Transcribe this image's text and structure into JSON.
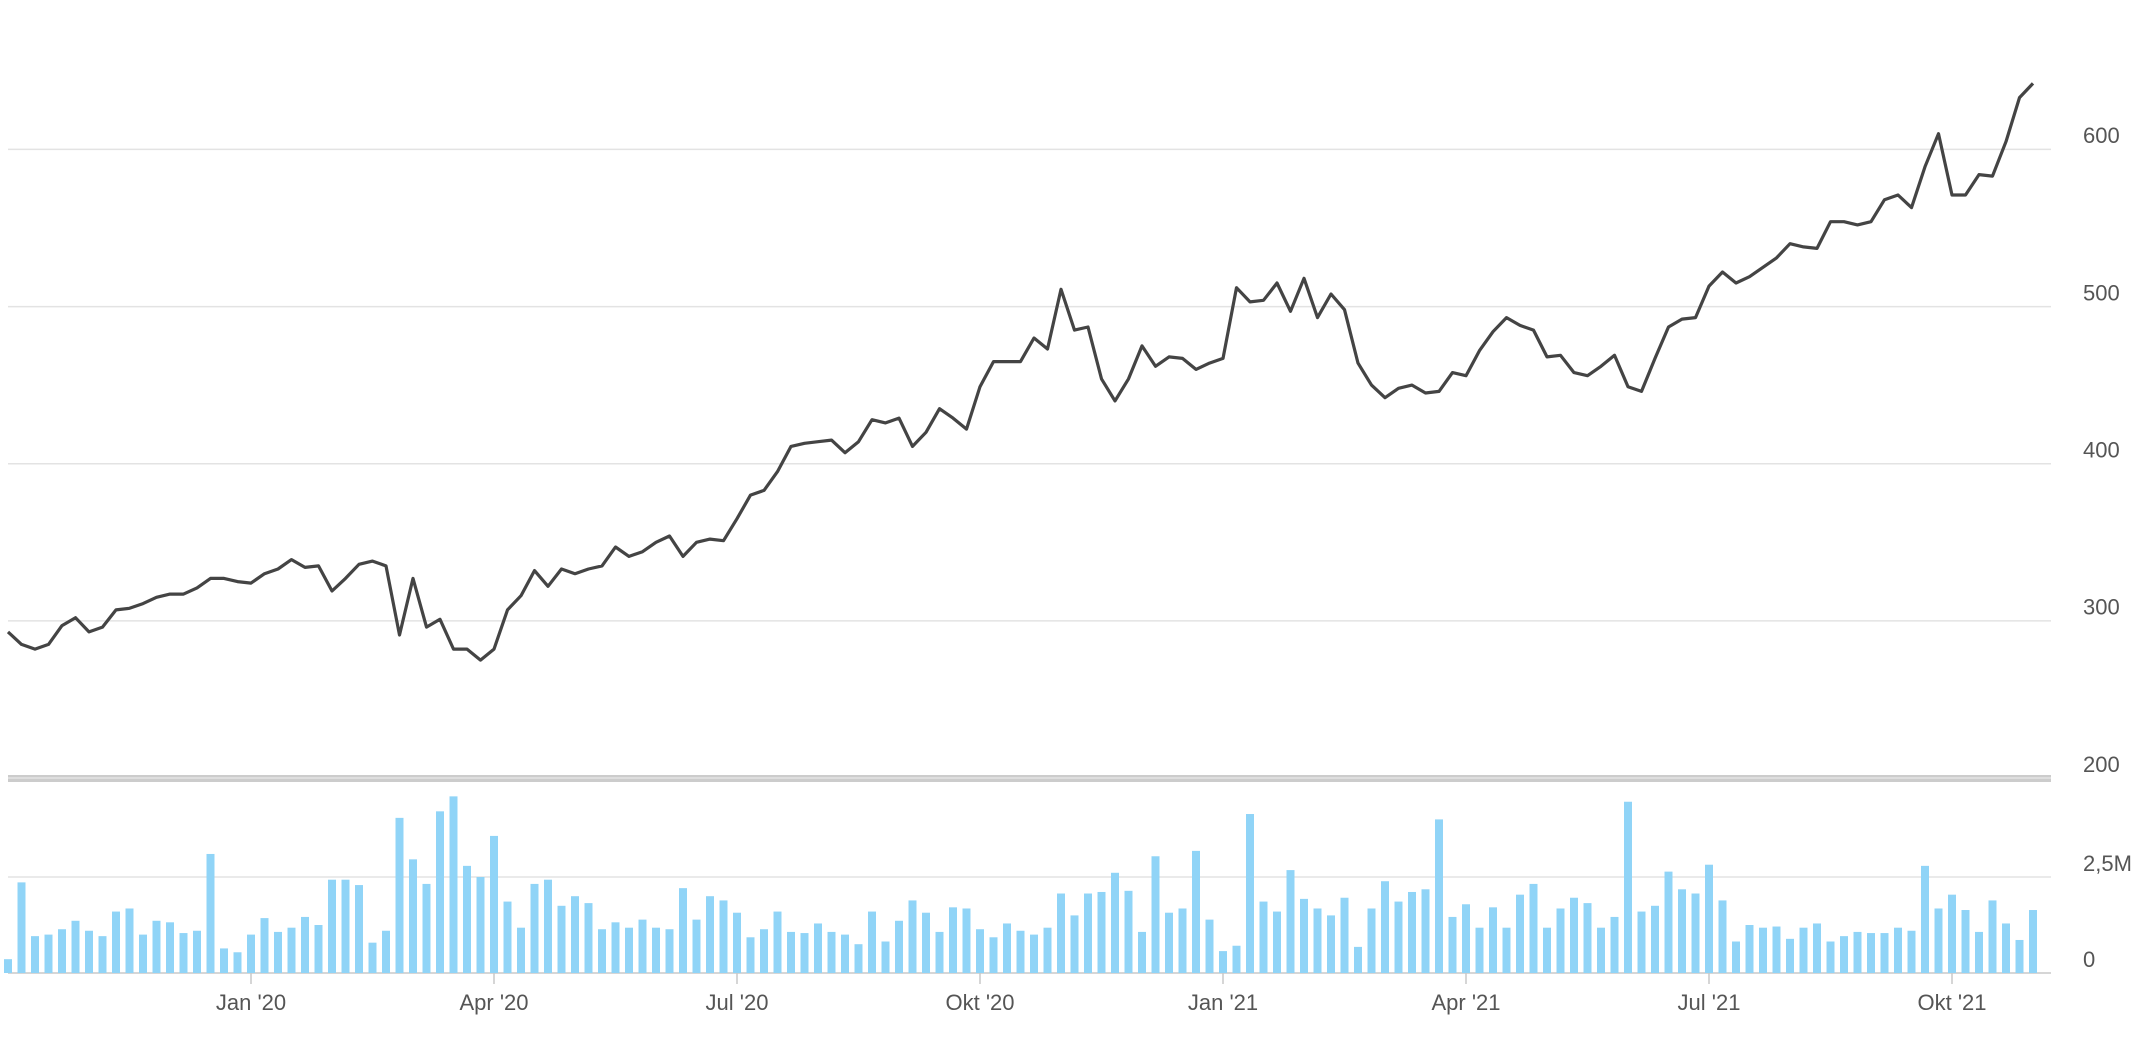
{
  "chart_data": [
    {
      "type": "line",
      "color": "#444444",
      "ylim": [
        200,
        690
      ],
      "yticks": [
        200,
        300,
        400,
        500,
        600
      ],
      "grid": true,
      "categories": [
        null,
        null,
        null,
        null,
        null,
        null,
        null,
        null,
        null,
        null,
        null,
        null,
        null,
        null,
        null,
        null,
        null,
        null,
        "Jan '20",
        null,
        null,
        null,
        null,
        null,
        null,
        null,
        null,
        null,
        null,
        null,
        null,
        null,
        null,
        null,
        null,
        null,
        "Apr '20",
        null,
        null,
        null,
        null,
        null,
        null,
        null,
        null,
        null,
        null,
        null,
        null,
        null,
        null,
        null,
        null,
        null,
        "Jul '20",
        null,
        null,
        null,
        null,
        null,
        null,
        null,
        null,
        null,
        null,
        null,
        null,
        null,
        null,
        null,
        null,
        null,
        "Okt '20",
        null,
        null,
        null,
        null,
        null,
        null,
        null,
        null,
        null,
        null,
        null,
        null,
        null,
        null,
        null,
        null,
        null,
        "Jan '21",
        null,
        null,
        null,
        null,
        null,
        null,
        null,
        null,
        null,
        null,
        null,
        null,
        null,
        null,
        null,
        null,
        null,
        "Apr '21",
        null,
        null,
        null,
        null,
        null,
        null,
        null,
        null,
        null,
        null,
        null,
        null,
        null,
        null,
        null,
        null,
        null,
        "Jul '21",
        null,
        null,
        null,
        null,
        null,
        null,
        null,
        null,
        null,
        null,
        null,
        null,
        null,
        null,
        null,
        null,
        null,
        "Okt '21",
        null,
        null,
        null,
        null,
        null,
        null
      ],
      "values": [
        293,
        285,
        282,
        285,
        297,
        302,
        293,
        296,
        307,
        308,
        311,
        315,
        317,
        317,
        321,
        327,
        327,
        325,
        324,
        330,
        333,
        339,
        334,
        335,
        319,
        327,
        336,
        338,
        335,
        291,
        327,
        296,
        301,
        282,
        282,
        275,
        282,
        307,
        316,
        332,
        322,
        333,
        330,
        333,
        335,
        347,
        341,
        344,
        350,
        354,
        341,
        350,
        352,
        351,
        365,
        380,
        383,
        395,
        411,
        413,
        414,
        415,
        407,
        414,
        428,
        426,
        429,
        411,
        420,
        435,
        429,
        422,
        449,
        465,
        465,
        465,
        480,
        473,
        511,
        485,
        487,
        454,
        440,
        454,
        475,
        462,
        468,
        467,
        460,
        464,
        467,
        512,
        503,
        504,
        515,
        497,
        518,
        493,
        508,
        498,
        464,
        450,
        442,
        448,
        450,
        445,
        446,
        458,
        456,
        472,
        484,
        493,
        488,
        485,
        468,
        469,
        458,
        456,
        462,
        469,
        449,
        446,
        467,
        487,
        492,
        493,
        513,
        522,
        515,
        519,
        525,
        531,
        540,
        538,
        537,
        554,
        554,
        552,
        554,
        568,
        571,
        563,
        589,
        610,
        571,
        571,
        584,
        583,
        605,
        633,
        642
      ]
    },
    {
      "type": "bar",
      "color": "#90d4f7",
      "ylim": [
        0,
        5000000
      ],
      "yticks": [
        0,
        {
          "value": 2500000,
          "label": "2,5M"
        }
      ],
      "grid": true,
      "values": [
        360000,
        2360000,
        960000,
        1000000,
        1140000,
        1360000,
        1100000,
        960000,
        1600000,
        1680000,
        1000000,
        1360000,
        1320000,
        1040000,
        1100000,
        3100000,
        640000,
        540000,
        1000000,
        1430000,
        1070000,
        1180000,
        1460000,
        1250000,
        2430000,
        2430000,
        2290000,
        790000,
        1100000,
        4040000,
        2960000,
        2320000,
        4210000,
        4600000,
        2790000,
        2500000,
        3570000,
        1860000,
        1180000,
        2320000,
        2430000,
        1750000,
        2000000,
        1820000,
        1140000,
        1320000,
        1180000,
        1390000,
        1180000,
        1140000,
        2210000,
        1390000,
        2000000,
        1890000,
        1570000,
        930000,
        1140000,
        1600000,
        1070000,
        1040000,
        1290000,
        1070000,
        1000000,
        750000,
        1600000,
        820000,
        1360000,
        1890000,
        1570000,
        1070000,
        1710000,
        1680000,
        1140000,
        930000,
        1290000,
        1100000,
        1000000,
        1180000,
        2070000,
        1500000,
        2070000,
        2110000,
        2610000,
        2140000,
        1070000,
        3040000,
        1570000,
        1680000,
        3180000,
        1390000,
        570000,
        710000,
        4140000,
        1860000,
        1600000,
        2680000,
        1930000,
        1680000,
        1500000,
        1960000,
        680000,
        1680000,
        2390000,
        1860000,
        2110000,
        2180000,
        4000000,
        1460000,
        1790000,
        1180000,
        1710000,
        1180000,
        2040000,
        2320000,
        1180000,
        1680000,
        1960000,
        1820000,
        1180000,
        1460000,
        4460000,
        1600000,
        1750000,
        2640000,
        2180000,
        2070000,
        2820000,
        1890000,
        820000,
        1250000,
        1180000,
        1210000,
        890000,
        1180000,
        1290000,
        820000,
        960000,
        1070000,
        1040000,
        1040000,
        1180000,
        1100000,
        2790000,
        1680000,
        2040000,
        1640000,
        1070000,
        1890000,
        1290000,
        860000,
        1640000
      ]
    }
  ]
}
